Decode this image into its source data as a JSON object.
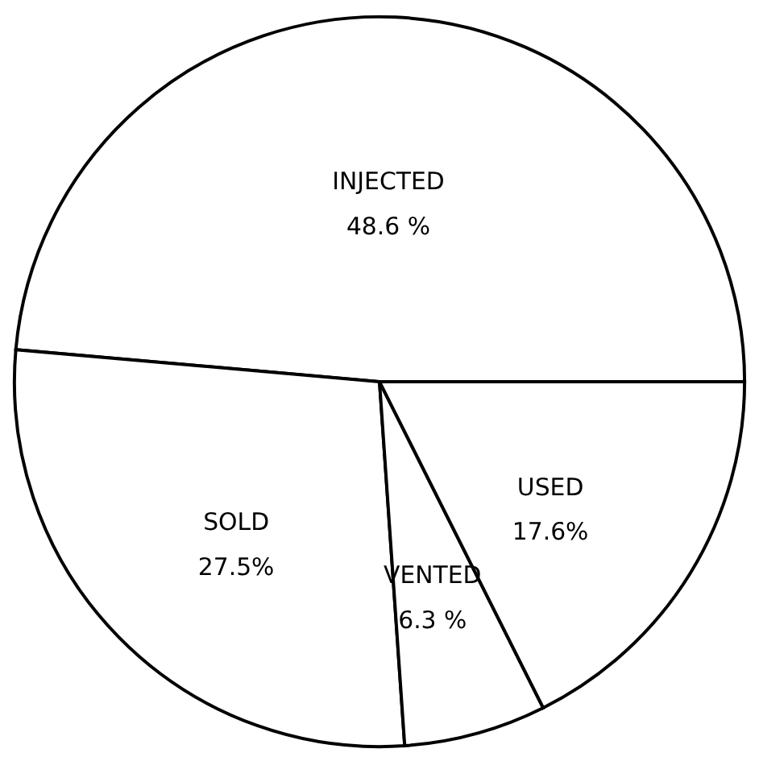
{
  "chart_data": {
    "type": "pie",
    "categories": [
      "INJECTED",
      "SOLD",
      "VENTED",
      "USED"
    ],
    "values": [
      48.6,
      27.5,
      6.3,
      17.6
    ],
    "value_labels": [
      "48.6 %",
      "27.5%",
      "6.3 %",
      "17.6%"
    ],
    "colors": [
      "#ffffff",
      "#ffffff",
      "#ffffff",
      "#ffffff"
    ],
    "legend": false
  }
}
